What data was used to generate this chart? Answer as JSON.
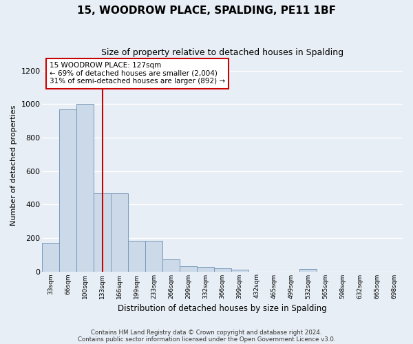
{
  "title": "15, WOODROW PLACE, SPALDING, PE11 1BF",
  "subtitle": "Size of property relative to detached houses in Spalding",
  "xlabel": "Distribution of detached houses by size in Spalding",
  "ylabel": "Number of detached properties",
  "bar_color": "#ccd9e8",
  "bar_edge_color": "#7799bb",
  "background_color": "#e8eef5",
  "grid_color": "#ffffff",
  "categories": [
    "33sqm",
    "66sqm",
    "100sqm",
    "133sqm",
    "166sqm",
    "199sqm",
    "233sqm",
    "266sqm",
    "299sqm",
    "332sqm",
    "366sqm",
    "399sqm",
    "432sqm",
    "465sqm",
    "499sqm",
    "532sqm",
    "565sqm",
    "598sqm",
    "632sqm",
    "665sqm",
    "698sqm"
  ],
  "values": [
    170,
    970,
    1000,
    465,
    465,
    185,
    185,
    70,
    30,
    25,
    20,
    10,
    0,
    0,
    0,
    15,
    0,
    0,
    0,
    0,
    0
  ],
  "ylim": [
    0,
    1270
  ],
  "yticks": [
    0,
    200,
    400,
    600,
    800,
    1000,
    1200
  ],
  "vline_index": 3,
  "property_line_label": "15 WOODROW PLACE: 127sqm",
  "annotation_line1": "← 69% of detached houses are smaller (2,004)",
  "annotation_line2": "31% of semi-detached houses are larger (892) →",
  "annotation_box_color": "#ffffff",
  "annotation_box_border": "#cc0000",
  "vline_color": "#cc0000",
  "footer_line1": "Contains HM Land Registry data © Crown copyright and database right 2024.",
  "footer_line2": "Contains public sector information licensed under the Open Government Licence v3.0."
}
